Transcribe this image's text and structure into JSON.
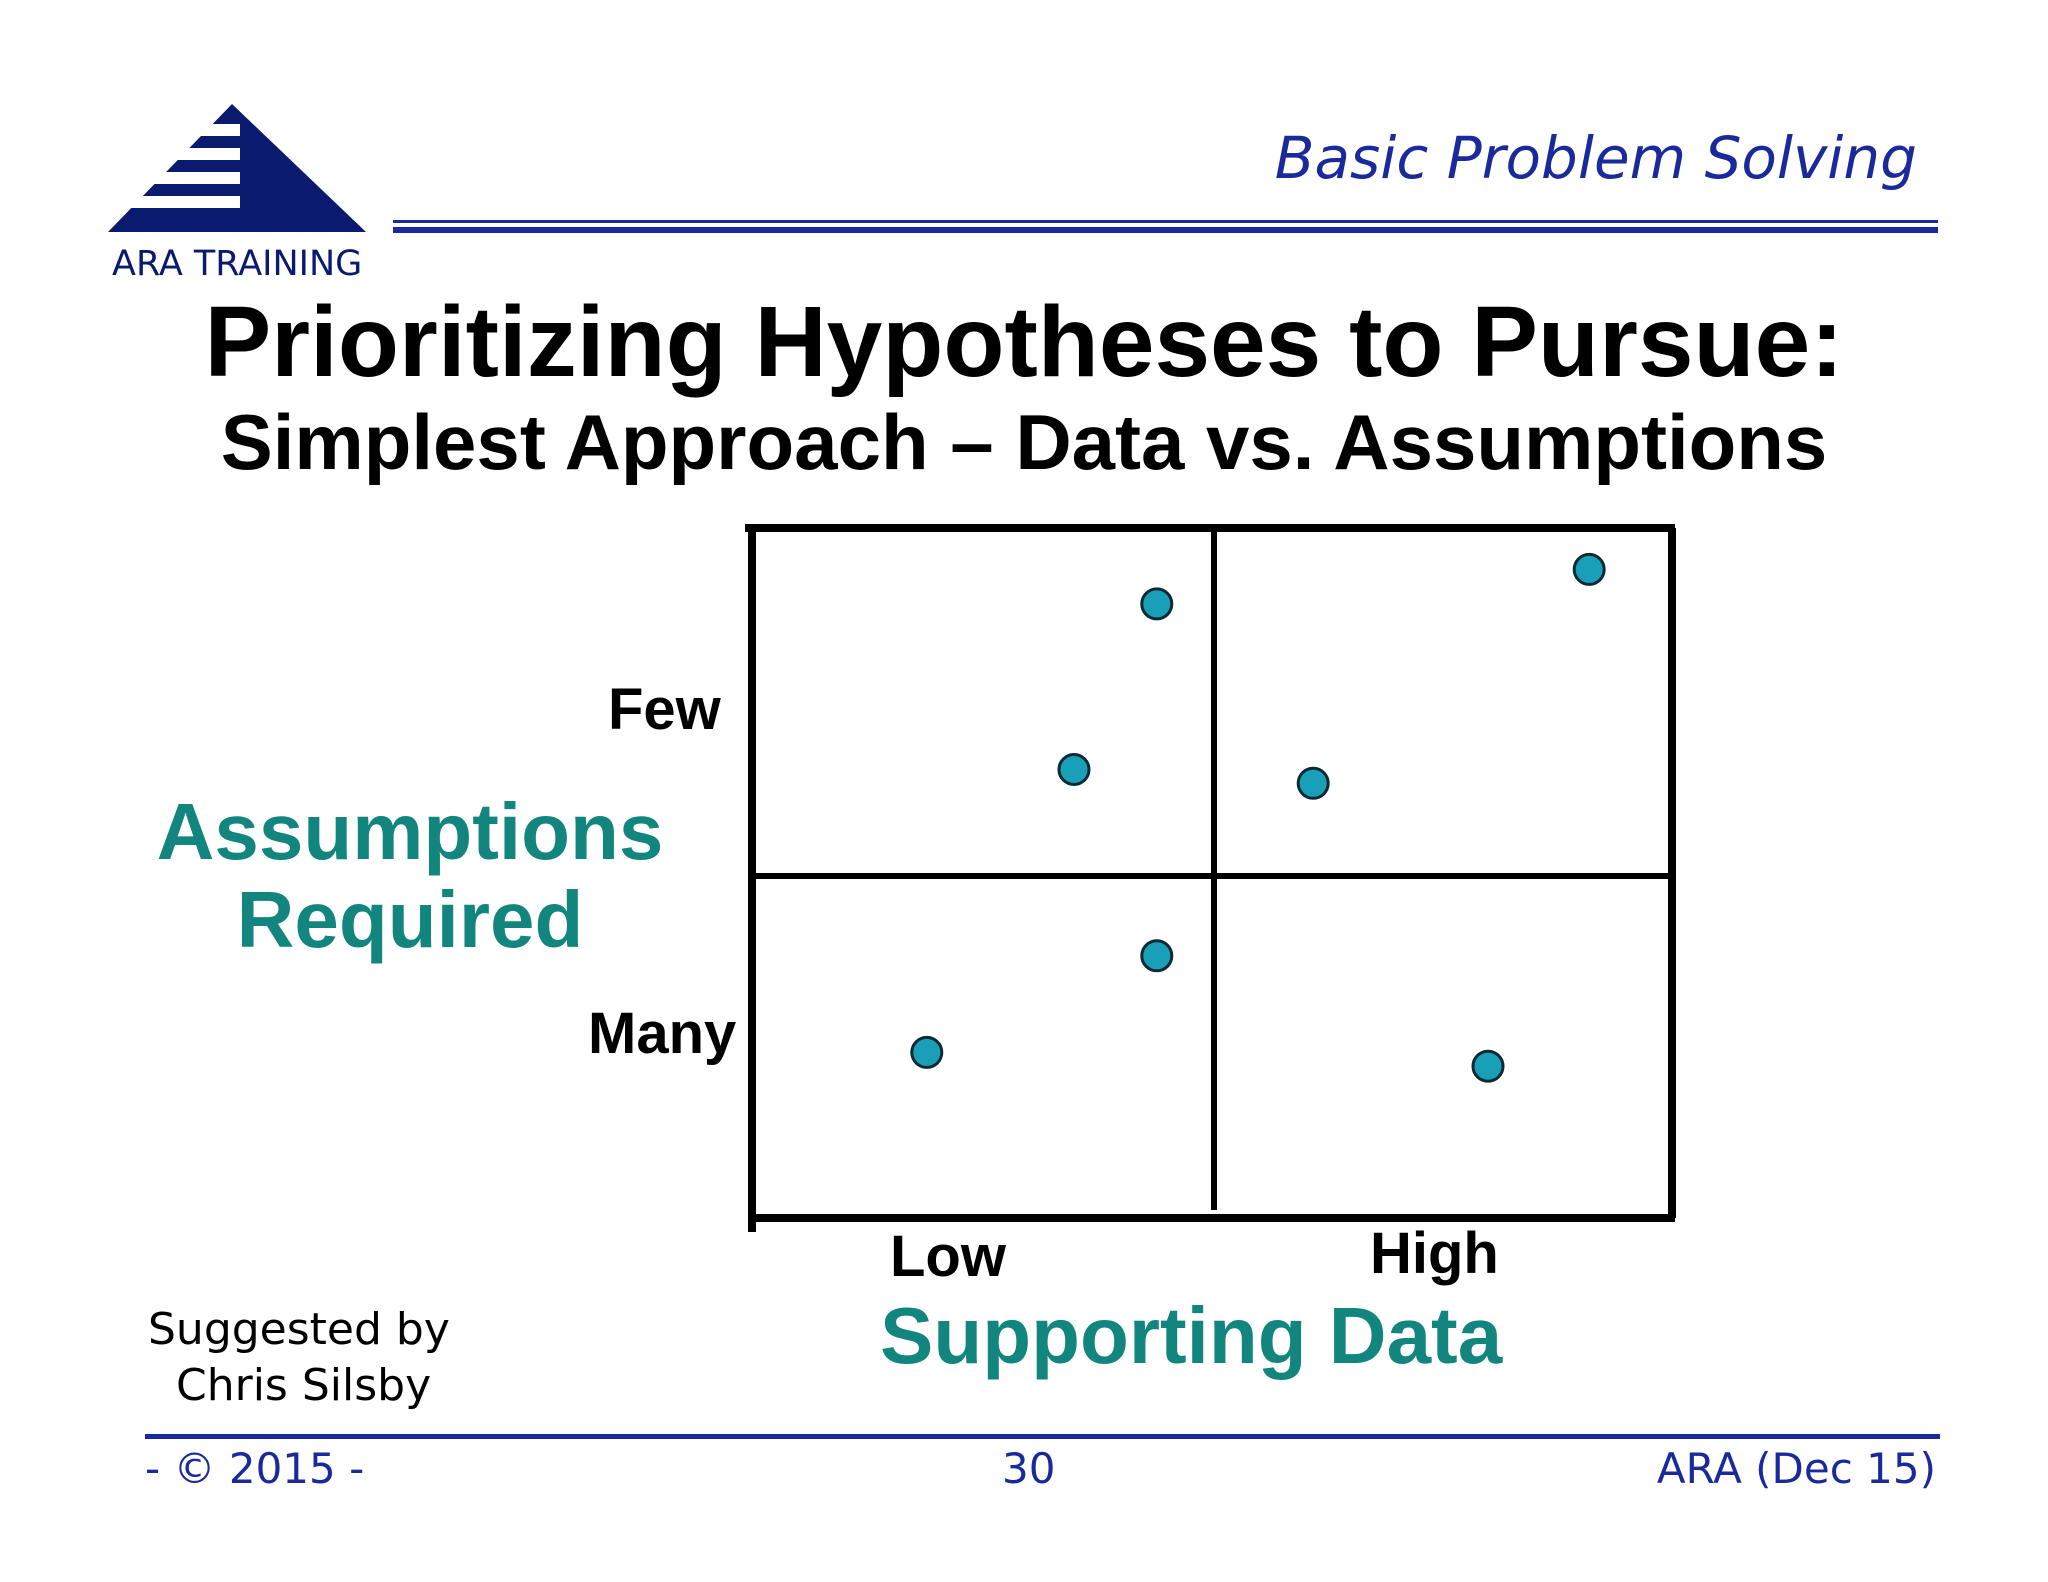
{
  "logo": {
    "text": "ARA TRAINING"
  },
  "header": {
    "title": "Basic Problem Solving"
  },
  "title": "Prioritizing Hypotheses to Pursue:",
  "subtitle": "Simplest Approach – Data vs. Assumptions",
  "chart_data": {
    "type": "scatter",
    "xlabel": "Supporting Data",
    "ylabel_line1": "Assumptions",
    "ylabel_line2": "Required",
    "x_ticks": [
      "Low",
      "High"
    ],
    "y_ticks": [
      "Few",
      "Many"
    ],
    "xlim": [
      0,
      1
    ],
    "ylim": [
      0,
      1
    ],
    "quadrants": "2x2",
    "marker_color": "#1a9fb8",
    "points": [
      {
        "x": 0.44,
        "y": 0.89
      },
      {
        "x": 0.35,
        "y": 0.65
      },
      {
        "x": 0.91,
        "y": 0.94
      },
      {
        "x": 0.61,
        "y": 0.63
      },
      {
        "x": 0.44,
        "y": 0.38
      },
      {
        "x": 0.19,
        "y": 0.24
      },
      {
        "x": 0.8,
        "y": 0.22
      }
    ]
  },
  "credit": {
    "line1": "Suggested by",
    "line2": "Chris Silsby"
  },
  "footer": {
    "left": "- © 2015 -",
    "center": "30",
    "right": "ARA (Dec 15)"
  }
}
